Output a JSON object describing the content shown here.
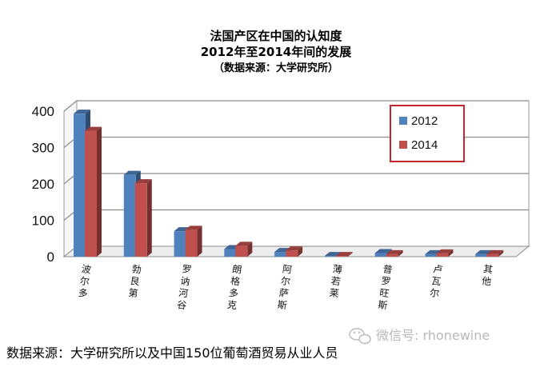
{
  "chart_data": {
    "type": "bar",
    "title": "法国产区在中国的认知度",
    "subtitle": "2012年至2014年间的发展",
    "source_note": "（数据来源：大学研究所）",
    "categories": [
      "波尔多",
      "勃艮第",
      "罗讷河谷",
      "朗格多克",
      "阿尔萨斯",
      "薄若莱",
      "普罗旺斯",
      "卢瓦尔",
      "其他"
    ],
    "series": [
      {
        "name": "2012",
        "color": "#4f81bd",
        "values": [
          393,
          225,
          70,
          21,
          13,
          2,
          10,
          7,
          7
        ]
      },
      {
        "name": "2014",
        "color": "#c0504d",
        "values": [
          346,
          202,
          74,
          30,
          17,
          2,
          7,
          9,
          7
        ]
      }
    ],
    "ylim": [
      0,
      400
    ],
    "yticks": [
      "0",
      "100",
      "200",
      "300",
      "400"
    ],
    "grid": true,
    "legend_position": "top-right"
  },
  "footer": {
    "source": "数据来源：大学研究所以及中国150位葡萄酒贸易从业人员"
  },
  "watermark": {
    "text": "微信号: rhonewine",
    "icon": "wechat-icon"
  }
}
